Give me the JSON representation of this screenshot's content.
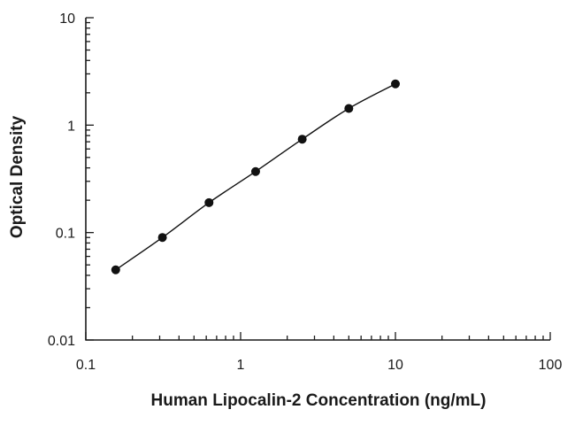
{
  "chart_data": {
    "type": "scatter",
    "title": "",
    "xlabel": "Human Lipocalin-2 Concentration (ng/mL)",
    "ylabel": "Optical Density",
    "xscale": "log",
    "yscale": "log",
    "xlim": [
      0.1,
      100
    ],
    "ylim": [
      0.01,
      10
    ],
    "x_ticks": [
      0.1,
      1,
      10,
      100
    ],
    "x_tick_labels": [
      "0.1",
      "1",
      "10",
      "100"
    ],
    "y_ticks": [
      0.01,
      0.1,
      1,
      10
    ],
    "y_tick_labels": [
      "0.01",
      "0.1",
      "1",
      "10"
    ],
    "grid": false,
    "legend": "none",
    "fit_curve": true,
    "series": [
      {
        "x": [
          0.156,
          0.3125,
          0.625,
          1.25,
          2.5,
          5,
          10
        ],
        "y": [
          0.045,
          0.09,
          0.19,
          0.37,
          0.74,
          1.43,
          2.42
        ]
      }
    ],
    "colors": {
      "points": "#111111",
      "curve": "#111111",
      "axes": "#1a1a1a"
    }
  }
}
